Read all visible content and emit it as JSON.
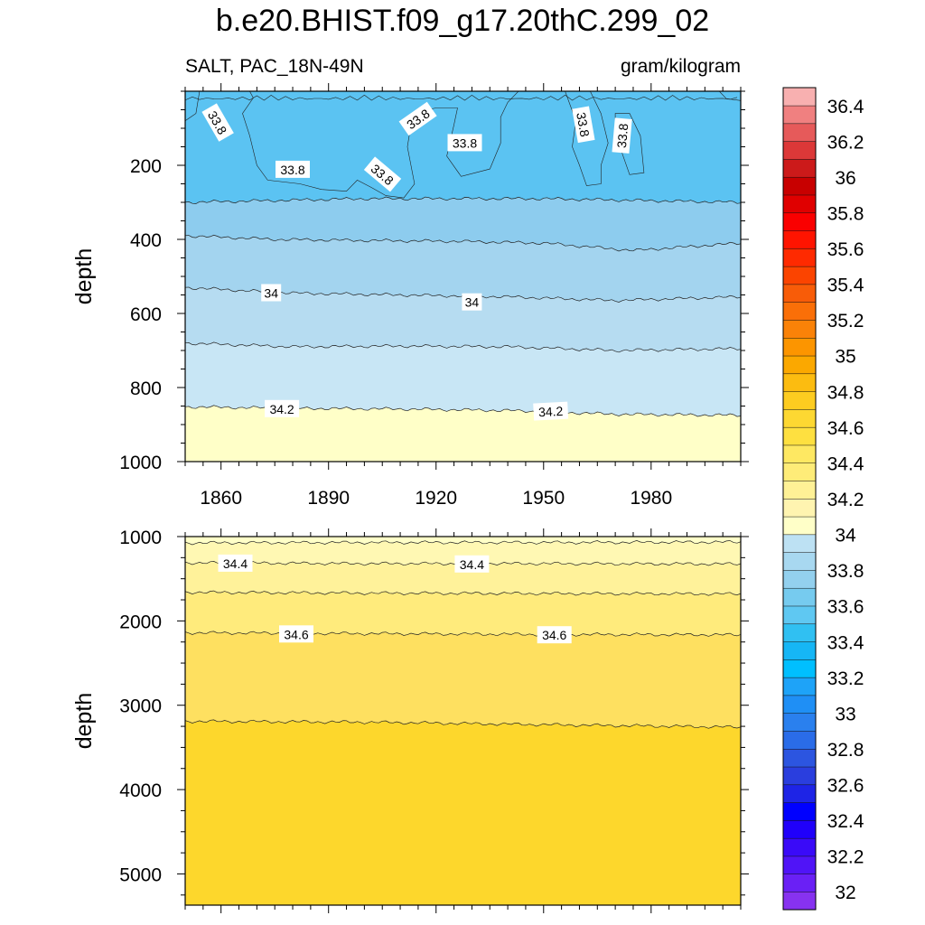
{
  "title": "b.e20.BHIST.f09_g17.20thC.299_02",
  "subtitle_left": "SALT, PAC_18N-49N",
  "subtitle_right": "gram/kilogram",
  "chart_data": [
    {
      "type": "heatmap",
      "panel": "upper",
      "ylabel": "depth",
      "xlabel": "",
      "xlim": [
        1850,
        2005
      ],
      "ylim": [
        0,
        1000
      ],
      "y_inverted": true,
      "x_ticks": [
        1860,
        1890,
        1920,
        1950,
        1980
      ],
      "y_ticks": [
        200,
        400,
        600,
        800,
        1000
      ],
      "contour_lines": [
        {
          "level": 33.8,
          "depth_by_year": [
            [
              1850,
              300
            ],
            [
              1900,
              290
            ],
            [
              1950,
              290
            ],
            [
              2005,
              300
            ]
          ],
          "note_pockets": true
        },
        {
          "level": 33.9,
          "depth_by_year": [
            [
              1850,
              390
            ],
            [
              1875,
              400
            ],
            [
              1900,
              403
            ],
            [
              1925,
              405
            ],
            [
              1950,
              410
            ],
            [
              1975,
              430
            ],
            [
              2005,
              410
            ]
          ]
        },
        {
          "level": 34.0,
          "depth_by_year": [
            [
              1850,
              530
            ],
            [
              1880,
              545
            ],
            [
              1910,
              550
            ],
            [
              1940,
              555
            ],
            [
              1970,
              565
            ],
            [
              2005,
              555
            ]
          ]
        },
        {
          "level": 34.1,
          "depth_by_year": [
            [
              1850,
              680
            ],
            [
              1880,
              690
            ],
            [
              1910,
              688
            ],
            [
              1940,
              690
            ],
            [
              1970,
              700
            ],
            [
              2005,
              695
            ]
          ]
        },
        {
          "level": 34.2,
          "depth_by_year": [
            [
              1850,
              852
            ],
            [
              1880,
              856
            ],
            [
              1910,
              858
            ],
            [
              1940,
              862
            ],
            [
              1970,
              872
            ],
            [
              2005,
              875
            ]
          ]
        }
      ],
      "contour_labels": [
        {
          "text": "33.8",
          "x": 1859,
          "y": 85,
          "rot": 60
        },
        {
          "text": "33.8",
          "x": 1880,
          "y": 212,
          "rot": 0
        },
        {
          "text": "33.8",
          "x": 1905,
          "y": 225,
          "rot": 40
        },
        {
          "text": "33.8",
          "x": 1915,
          "y": 75,
          "rot": -35
        },
        {
          "text": "33.8",
          "x": 1928,
          "y": 140,
          "rot": 0
        },
        {
          "text": "33.8",
          "x": 1961,
          "y": 90,
          "rot": 80
        },
        {
          "text": "33.8",
          "x": 1972,
          "y": 120,
          "rot": -85
        },
        {
          "text": "34",
          "x": 1874,
          "y": 545,
          "rot": 0
        },
        {
          "text": "34",
          "x": 1930,
          "y": 570,
          "rot": 0
        },
        {
          "text": "34.2",
          "x": 1877,
          "y": 858,
          "rot": 0
        },
        {
          "text": "34.2",
          "x": 1952,
          "y": 865,
          "rot": -3
        }
      ]
    },
    {
      "type": "heatmap",
      "panel": "lower",
      "ylabel": "depth",
      "xlabel": "",
      "xlim": [
        1850,
        2005
      ],
      "ylim": [
        1000,
        5370
      ],
      "y_inverted": true,
      "x_ticks": [
        1860,
        1890,
        1920,
        1950,
        1980
      ],
      "y_ticks": [
        1000,
        2000,
        3000,
        4000,
        5000
      ],
      "contour_lines": [
        {
          "level": 34.3,
          "depth_by_year": [
            [
              1850,
              1075
            ],
            [
              1900,
              1070
            ],
            [
              1950,
              1070
            ],
            [
              2005,
              1065
            ]
          ]
        },
        {
          "level": 34.4,
          "depth_by_year": [
            [
              1850,
              1310
            ],
            [
              1900,
              1320
            ],
            [
              1950,
              1320
            ],
            [
              2005,
              1325
            ]
          ]
        },
        {
          "level": 34.5,
          "depth_by_year": [
            [
              1850,
              1660
            ],
            [
              1900,
              1670
            ],
            [
              1950,
              1675
            ],
            [
              2005,
              1680
            ]
          ]
        },
        {
          "level": 34.6,
          "depth_by_year": [
            [
              1850,
              2140
            ],
            [
              1900,
              2150
            ],
            [
              1950,
              2160
            ],
            [
              2005,
              2165
            ]
          ]
        },
        {
          "level": 34.7,
          "depth_by_year": [
            [
              1850,
              3190
            ],
            [
              1900,
              3200
            ],
            [
              1950,
              3230
            ],
            [
              2005,
              3260
            ]
          ]
        }
      ],
      "contour_labels": [
        {
          "text": "34.4",
          "x": 1864,
          "y": 1320,
          "rot": 0
        },
        {
          "text": "34.4",
          "x": 1930,
          "y": 1330,
          "rot": 0
        },
        {
          "text": "34.6",
          "x": 1881,
          "y": 2160,
          "rot": 0
        },
        {
          "text": "34.6",
          "x": 1953,
          "y": 2170,
          "rot": 0
        }
      ]
    }
  ],
  "colorbar": {
    "labels": [
      "32",
      "32.2",
      "32.4",
      "32.6",
      "32.8",
      "33",
      "33.2",
      "33.4",
      "33.6",
      "33.8",
      "34",
      "34.2",
      "34.4",
      "34.6",
      "34.8",
      "35",
      "35.2",
      "35.4",
      "35.6",
      "35.8",
      "36",
      "36.2",
      "36.4"
    ],
    "colors": [
      "#8732f0",
      "#6a20f5",
      "#5014f7",
      "#3a0af8",
      "#2000fa",
      "#0000ff",
      "#1e24e6",
      "#2a3ede",
      "#2c55e0",
      "#2a6ce8",
      "#2a80ee",
      "#1f8ff5",
      "#1ea3f8",
      "#00bfff",
      "#16b6f5",
      "#30c0f2",
      "#5fc8f2",
      "#76cbef",
      "#93d0ee",
      "#a8d8f0",
      "#bde1f3",
      "#ffffc8",
      "#fff4b0",
      "#fff196",
      "#feec78",
      "#fee862",
      "#fee040",
      "#fdd832",
      "#fdcc20",
      "#fcbc10",
      "#fba800",
      "#fc9500",
      "#fa8208",
      "#fa6f08",
      "#f85c08",
      "#fb4400",
      "#fe2a00",
      "#ff1400",
      "#fa0000",
      "#e00000",
      "#c80000",
      "#cc1a1a",
      "#dc3838",
      "#e65a5a",
      "#f08080",
      "#f8b0b0"
    ]
  },
  "colors": {
    "fill_low": "#5bc3f2",
    "fill_338": "#8dccee",
    "fill_339": "#a3d4ef",
    "fill_340": "#b6dcf1",
    "fill_341": "#c8e6f5",
    "fill_342": "#ffffc8",
    "fill_343": "#fff8b3",
    "fill_344": "#fff29a",
    "fill_345": "#ffeb7c",
    "fill_346": "#fee060",
    "fill_347": "#fdd72c"
  }
}
